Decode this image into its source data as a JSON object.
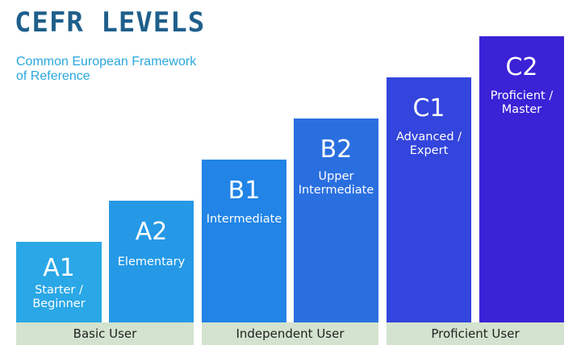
{
  "header": {
    "title": "CEFR LEVELS",
    "subtitle_line1": "Common European Framework",
    "subtitle_line2": "of Reference"
  },
  "levels": [
    {
      "code": "A1",
      "label_line1": "Starter /",
      "label_line2": "Beginner",
      "color": "#2aa7e6"
    },
    {
      "code": "A2",
      "label_line1": "Elementary",
      "label_line2": "",
      "color": "#2599e6"
    },
    {
      "code": "B1",
      "label_line1": "Intermediate",
      "label_line2": "",
      "color": "#2184e6"
    },
    {
      "code": "B2",
      "label_line1": "Upper",
      "label_line2": "Intermediate",
      "color": "#2a6fe0"
    },
    {
      "code": "C1",
      "label_line1": "Advanced /",
      "label_line2": "Expert",
      "color": "#3345dc"
    },
    {
      "code": "C2",
      "label_line1": "Proficient /",
      "label_line2": "Master",
      "color": "#3a22d6"
    }
  ],
  "groups": [
    {
      "label": "Basic User"
    },
    {
      "label": "Independent User"
    },
    {
      "label": "Proficient User"
    }
  ],
  "colors": {
    "title": "#1f5f8b",
    "subtitle": "#29a7dc",
    "base": "#d3e3cf"
  }
}
